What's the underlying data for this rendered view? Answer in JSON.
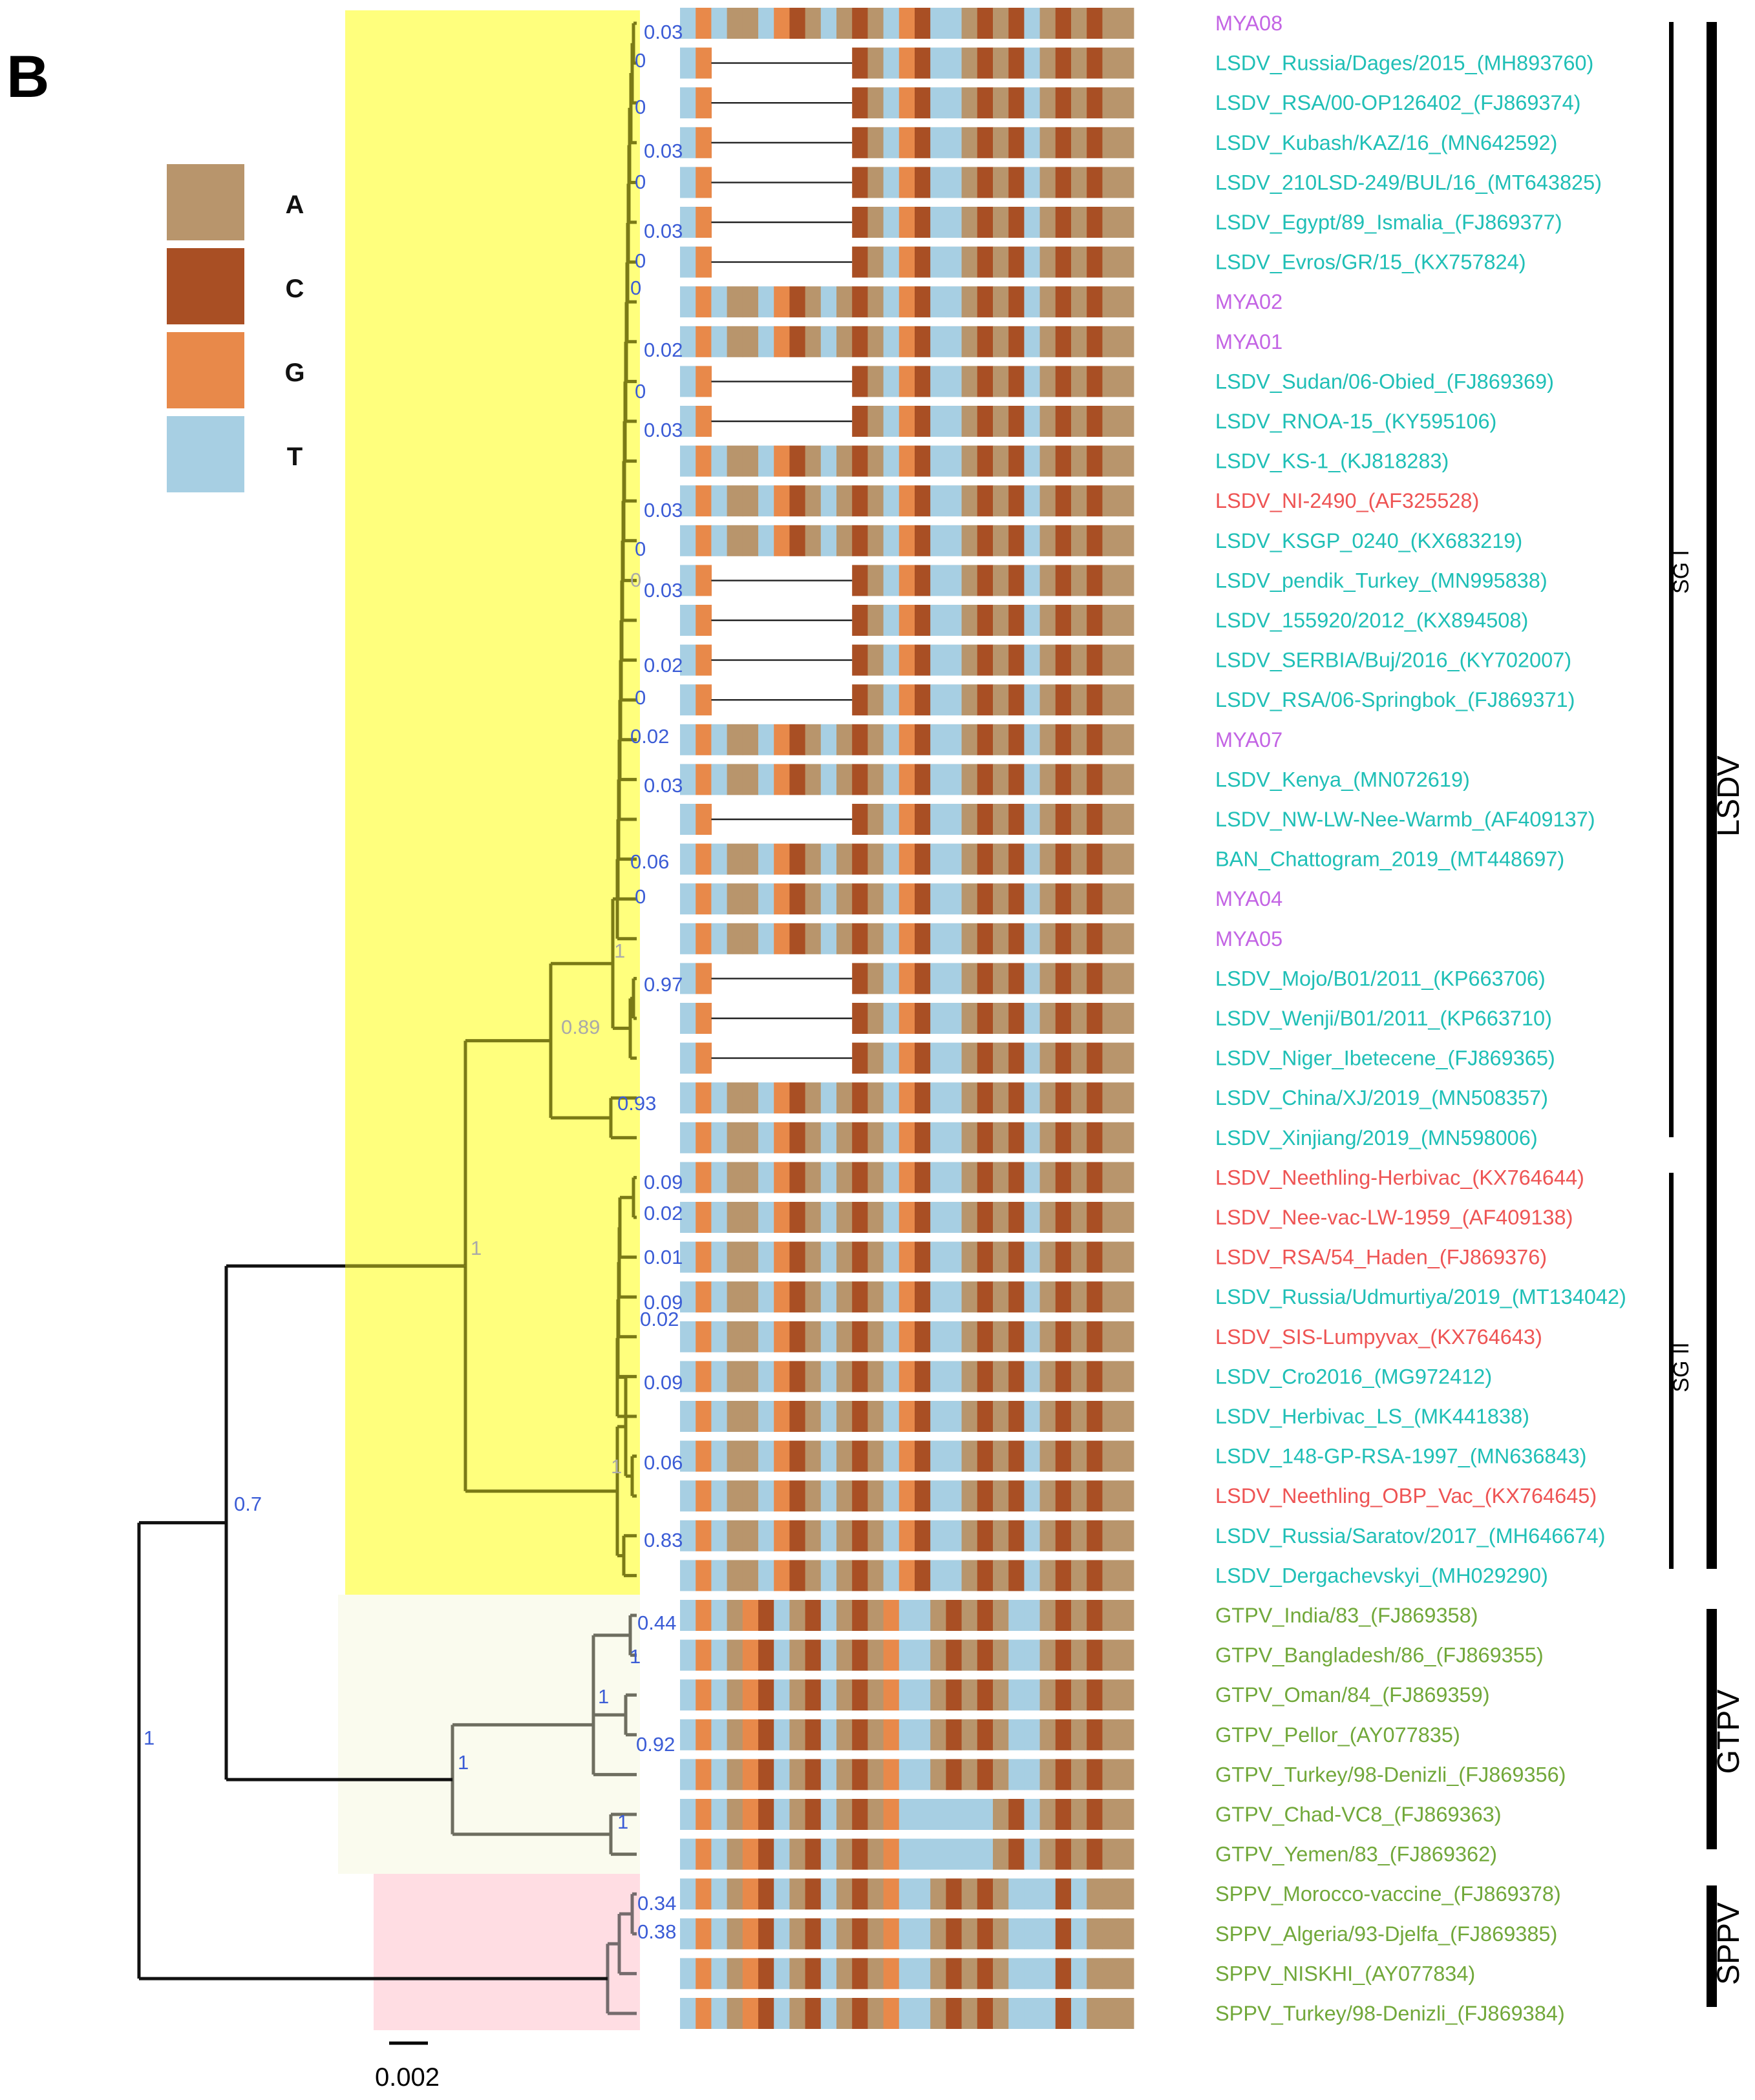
{
  "panel_label": "B",
  "legend": {
    "items": [
      {
        "label": "A",
        "color": "#b8956c"
      },
      {
        "label": "C",
        "color": "#a94f24"
      },
      {
        "label": "G",
        "color": "#e8894a"
      },
      {
        "label": "T",
        "color": "#a7cfe3"
      }
    ]
  },
  "scale_bar": {
    "label": "0.002",
    "length": 0.002
  },
  "palette": {
    "purple": "#c364e4",
    "teal": "#1fbfb6",
    "red": "#ee5454",
    "green": "#71a83a",
    "support": "#3b5cd6",
    "support_faint": "#a9a9a9",
    "lsdv_clade_bg": "#ffff7d",
    "gtpv_clade_bg": "#fafbee",
    "sppv_clade_bg": "#ffdde3",
    "lsdv_branch": "#7a7a16",
    "gtpv_branch": "#6e6e60",
    "sppv_branch": "#756b6d",
    "root_branch": "#111111"
  },
  "taxa": [
    {
      "label": "MYA08",
      "color": "purple",
      "gap": false
    },
    {
      "label": "LSDV_Russia/Dages/2015_(MH893760)",
      "color": "teal",
      "gap": true
    },
    {
      "label": "LSDV_RSA/00-OP126402_(FJ869374)",
      "color": "teal",
      "gap": true
    },
    {
      "label": "LSDV_Kubash/KAZ/16_(MN642592)",
      "color": "teal",
      "gap": true
    },
    {
      "label": "LSDV_210LSD-249/BUL/16_(MT643825)",
      "color": "teal",
      "gap": true
    },
    {
      "label": "LSDV_Egypt/89_Ismalia_(FJ869377)",
      "color": "teal",
      "gap": true
    },
    {
      "label": "LSDV_Evros/GR/15_(KX757824)",
      "color": "teal",
      "gap": true
    },
    {
      "label": "MYA02",
      "color": "purple",
      "gap": false
    },
    {
      "label": "MYA01",
      "color": "purple",
      "gap": false
    },
    {
      "label": "LSDV_Sudan/06-Obied_(FJ869369)",
      "color": "teal",
      "gap": true
    },
    {
      "label": "LSDV_RNOA-15_(KY595106)",
      "color": "teal",
      "gap": true
    },
    {
      "label": "LSDV_KS-1_(KJ818283)",
      "color": "teal",
      "gap": false
    },
    {
      "label": "LSDV_NI-2490_(AF325528)",
      "color": "red",
      "gap": false
    },
    {
      "label": "LSDV_KSGP_0240_(KX683219)",
      "color": "teal",
      "gap": false
    },
    {
      "label": "LSDV_pendik_Turkey_(MN995838)",
      "color": "teal",
      "gap": true
    },
    {
      "label": "LSDV_155920/2012_(KX894508)",
      "color": "teal",
      "gap": true
    },
    {
      "label": "LSDV_SERBIA/Buj/2016_(KY702007)",
      "color": "teal",
      "gap": true
    },
    {
      "label": "LSDV_RSA/06-Springbok_(FJ869371)",
      "color": "teal",
      "gap": true
    },
    {
      "label": "MYA07",
      "color": "purple",
      "gap": false
    },
    {
      "label": "LSDV_Kenya_(MN072619)",
      "color": "teal",
      "gap": false
    },
    {
      "label": "LSDV_NW-LW-Nee-Warmb_(AF409137)",
      "color": "teal",
      "gap": true
    },
    {
      "label": "BAN_Chattogram_2019_(MT448697)",
      "color": "teal",
      "gap": false
    },
    {
      "label": "MYA04",
      "color": "purple",
      "gap": false
    },
    {
      "label": "MYA05",
      "color": "purple",
      "gap": false
    },
    {
      "label": "LSDV_Mojo/B01/2011_(KP663706)",
      "color": "teal",
      "gap": true
    },
    {
      "label": "LSDV_Wenji/B01/2011_(KP663710)",
      "color": "teal",
      "gap": true
    },
    {
      "label": "LSDV_Niger_Ibetecene_(FJ869365)",
      "color": "teal",
      "gap": true
    },
    {
      "label": "LSDV_China/XJ/2019_(MN508357)",
      "color": "teal",
      "gap": false
    },
    {
      "label": "LSDV_Xinjiang/2019_(MN598006)",
      "color": "teal",
      "gap": false
    },
    {
      "label": "LSDV_Neethling-Herbivac_(KX764644)",
      "color": "red",
      "gap": false
    },
    {
      "label": "LSDV_Nee-vac-LW-1959_(AF409138)",
      "color": "red",
      "gap": false
    },
    {
      "label": "LSDV_RSA/54_Haden_(FJ869376)",
      "color": "red",
      "gap": false
    },
    {
      "label": "LSDV_Russia/Udmurtiya/2019_(MT134042)",
      "color": "teal",
      "gap": false
    },
    {
      "label": "LSDV_SIS-Lumpyvax_(KX764643)",
      "color": "red",
      "gap": false
    },
    {
      "label": "LSDV_Cro2016_(MG972412)",
      "color": "teal",
      "gap": false
    },
    {
      "label": "LSDV_Herbivac_LS_(MK441838)",
      "color": "teal",
      "gap": false
    },
    {
      "label": "LSDV_148-GP-RSA-1997_(MN636843)",
      "color": "teal",
      "gap": false
    },
    {
      "label": "LSDV_Neethling_OBP_Vac_(KX764645)",
      "color": "red",
      "gap": false
    },
    {
      "label": "LSDV_Russia/Saratov/2017_(MH646674)",
      "color": "teal",
      "gap": false
    },
    {
      "label": "LSDV_Dergachevskyi_(MH029290)",
      "color": "teal",
      "gap": false
    },
    {
      "label": "GTPV_India/83_(FJ869358)",
      "color": "green",
      "gap": false
    },
    {
      "label": "GTPV_Bangladesh/86_(FJ869355)",
      "color": "green",
      "gap": false
    },
    {
      "label": "GTPV_Oman/84_(FJ869359)",
      "color": "green",
      "gap": false
    },
    {
      "label": "GTPV_Pellor_(AY077835)",
      "color": "green",
      "gap": false
    },
    {
      "label": "GTPV_Turkey/98-Denizli_(FJ869356)",
      "color": "green",
      "gap": false
    },
    {
      "label": "GTPV_Chad-VC8_(FJ869363)",
      "color": "green",
      "gap": false
    },
    {
      "label": "GTPV_Yemen/83_(FJ869362)",
      "color": "green",
      "gap": false
    },
    {
      "label": "SPPV_Morocco-vaccine_(FJ869378)",
      "color": "green",
      "gap": false
    },
    {
      "label": "SPPV_Algeria/93-Djelfa_(FJ869385)",
      "color": "green",
      "gap": false
    },
    {
      "label": "SPPV_NISKHI_(AY077834)",
      "color": "green",
      "gap": false
    },
    {
      "label": "SPPV_Turkey/98-Denizli_(FJ869384)",
      "color": "green",
      "gap": false
    }
  ],
  "alignment": {
    "lsdv_pattern": [
      "T",
      "G",
      "T",
      "A",
      "A",
      "T",
      "G",
      "C",
      "A",
      "T",
      "A",
      "C",
      "A",
      "T",
      "G",
      "C",
      "T",
      "T",
      "A",
      "C",
      "A",
      "C",
      "T",
      "A",
      "C",
      "A",
      "C",
      "A",
      "A"
    ],
    "gtpv_pattern": [
      "T",
      "G",
      "T",
      "A",
      "G",
      "C",
      "T",
      "A",
      "C",
      "T",
      "A",
      "C",
      "A",
      "G",
      "T",
      "T",
      "A",
      "C",
      "A",
      "C",
      "A",
      "T",
      "T",
      "A",
      "C",
      "A",
      "C",
      "A",
      "A"
    ],
    "gtpv_late_pattern": [
      "T",
      "G",
      "T",
      "A",
      "G",
      "C",
      "T",
      "A",
      "C",
      "T",
      "A",
      "C",
      "A",
      "G",
      "T",
      "T",
      "T",
      "T",
      "T",
      "T",
      "A",
      "C",
      "T",
      "A",
      "C",
      "A",
      "C",
      "A",
      "A"
    ],
    "sppv_pattern": [
      "T",
      "G",
      "T",
      "A",
      "G",
      "C",
      "T",
      "A",
      "C",
      "T",
      "A",
      "C",
      "A",
      "G",
      "T",
      "T",
      "A",
      "C",
      "A",
      "C",
      "A",
      "T",
      "T",
      "T",
      "C",
      "T",
      "A",
      "A",
      "A"
    ],
    "gap_columns": [
      2,
      10
    ]
  },
  "support_values": [
    {
      "value": "0.03",
      "tone": "support"
    },
    {
      "value": "0",
      "tone": "support"
    },
    {
      "value": "0",
      "tone": "support"
    },
    {
      "value": "0.03",
      "tone": "support"
    },
    {
      "value": "0",
      "tone": "support"
    },
    {
      "value": "0.03",
      "tone": "support"
    },
    {
      "value": "0",
      "tone": "support"
    },
    {
      "value": "0",
      "tone": "support"
    },
    {
      "value": "0.02",
      "tone": "support"
    },
    {
      "value": "0",
      "tone": "support"
    },
    {
      "value": "0.03",
      "tone": "support"
    },
    {
      "value": "0.03",
      "tone": "support"
    },
    {
      "value": "0",
      "tone": "support"
    },
    {
      "value": "0",
      "tone": "support_faint"
    },
    {
      "value": "0.03",
      "tone": "support"
    },
    {
      "value": "0.02",
      "tone": "support"
    },
    {
      "value": "0",
      "tone": "support"
    },
    {
      "value": "0.02",
      "tone": "support"
    },
    {
      "value": "0.03",
      "tone": "support"
    },
    {
      "value": "0.06",
      "tone": "support"
    },
    {
      "value": "0",
      "tone": "support"
    },
    {
      "value": "1",
      "tone": "support_faint"
    },
    {
      "value": "0.97",
      "tone": "support"
    },
    {
      "value": "0.89",
      "tone": "support_faint"
    },
    {
      "value": "0.93",
      "tone": "support"
    },
    {
      "value": "1",
      "tone": "support_faint"
    },
    {
      "value": "0.09",
      "tone": "support"
    },
    {
      "value": "0.02",
      "tone": "support"
    },
    {
      "value": "0.01",
      "tone": "support"
    },
    {
      "value": "0.09",
      "tone": "support"
    },
    {
      "value": "0.02",
      "tone": "support"
    },
    {
      "value": "0.09",
      "tone": "support"
    },
    {
      "value": "1",
      "tone": "support_faint"
    },
    {
      "value": "0.06",
      "tone": "support"
    },
    {
      "value": "0.83",
      "tone": "support"
    },
    {
      "value": "0.7",
      "tone": "support"
    },
    {
      "value": "1",
      "tone": "support"
    },
    {
      "value": "0.44",
      "tone": "support"
    },
    {
      "value": "1",
      "tone": "support"
    },
    {
      "value": "1",
      "tone": "support"
    },
    {
      "value": "0.92",
      "tone": "support"
    },
    {
      "value": "1",
      "tone": "support"
    },
    {
      "value": "1",
      "tone": "support"
    },
    {
      "value": "0.34",
      "tone": "support"
    },
    {
      "value": "0.38",
      "tone": "support"
    }
  ],
  "clade_brackets": [
    {
      "label": "SG I"
    },
    {
      "label": "SG II"
    },
    {
      "label": "LSDV"
    },
    {
      "label": "GTPV"
    },
    {
      "label": "SPPV"
    }
  ]
}
